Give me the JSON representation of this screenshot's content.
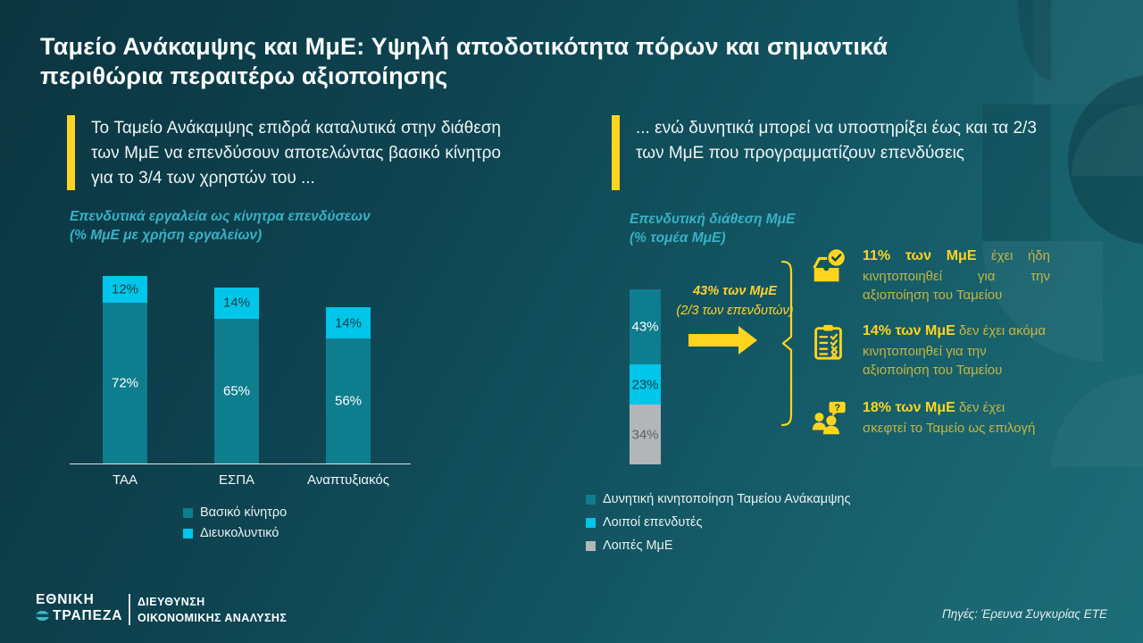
{
  "title": "Ταμείο Ανάκαμψης και ΜμΕ: Υψηλή αποδοτικότητα πόρων και σημαντικά περιθώρια περαιτέρω αξιοποίησης",
  "callouts": {
    "left": "Το Ταμείο Ανάκαμψης επιδρά καταλυτικά στην διάθεση των ΜμΕ να επενδύσουν αποτελώντας βασικό κίνητρο για το 3/4 των χρηστών του ...",
    "right": "... ενώ δυνητικά μπορεί να υποστηρίξει έως και τα 2/3 των ΜμΕ που προγραμματίζουν επενδύσεις"
  },
  "chart_data": [
    {
      "type": "bar",
      "stacked": true,
      "series_order": "bottom-to-top",
      "title": "Επενδυτικά εργαλεία ως κίνητρα επενδύσεων",
      "subtitle": "(% ΜμΕ με χρήση εργαλείων)",
      "categories": [
        "ΤΑΑ",
        "ΕΣΠΑ",
        "Αναπτυξιακός"
      ],
      "series": [
        {
          "name": "Βασικό κίνητρο",
          "color": "#0e7d8d",
          "values": [
            72,
            65,
            56
          ]
        },
        {
          "name": "Διευκολυντικό",
          "color": "#00c6e9",
          "values": [
            12,
            14,
            14
          ]
        }
      ],
      "ylim": [
        0,
        100
      ],
      "grid": false,
      "value_labels": "percent-inside",
      "legend_position": "bottom"
    },
    {
      "type": "bar",
      "stacked": true,
      "series_order": "top-to-bottom",
      "title": "Επενδυτική διάθεση ΜμΕ",
      "subtitle": "(% τομέα ΜμΕ)",
      "categories": [
        "ΜμΕ"
      ],
      "series": [
        {
          "name": "Δυνητική κινητοποίηση Ταμείου Ανάκαμψης",
          "color": "#0e7d8d",
          "values": [
            43
          ]
        },
        {
          "name": "Λοιποί επενδυτές",
          "color": "#00c6e9",
          "values": [
            23
          ]
        },
        {
          "name": "Λοιπές ΜμΕ",
          "color": "#b3b6b8",
          "values": [
            34
          ]
        }
      ],
      "ylim": [
        0,
        100
      ],
      "grid": false,
      "value_labels": "percent-inside",
      "legend_position": "bottom",
      "annotation": {
        "line1": "43% των ΜμΕ",
        "line2": "(2/3 των επενδυτών)"
      },
      "callouts": [
        {
          "icon": "inbox-check",
          "bold": "11% των ΜμΕ",
          "text": "έχει ήδη κινητοποιηθεί για την αξιοποίηση του Ταμείου"
        },
        {
          "icon": "clipboard-checklist",
          "bold": "14% των ΜμΕ",
          "text": "δεν έχει ακόμα κινητοποιηθεί για την αξιοποίηση του Ταμείου"
        },
        {
          "icon": "people-question",
          "bold": "18% των ΜμΕ",
          "text": "δεν έχει σκεφτεί το Ταμείο ως επιλογή"
        }
      ]
    }
  ],
  "footer": {
    "brand_line1": "ΕΘΝΙΚΗ",
    "brand_line2": "ΤΡΑΠΕΖΑ",
    "department_line1": "ΔΙΕΥΘΥΝΣΗ",
    "department_line2": "ΟΙΚΟΝΟΜΙΚΗΣ ΑΝΑΛΥΣΗΣ",
    "source": "Πηγές: Έρευνα Συγκυρίας ΕΤΕ"
  },
  "colors": {
    "accent_yellow": "#ffd41f",
    "bar_teal": "#0e7d8d",
    "bar_cyan": "#00c6e9",
    "bar_gray": "#b3b6b8",
    "chart_title_teal": "#38b2c5",
    "note_regular_yellow": "#c6b540"
  }
}
